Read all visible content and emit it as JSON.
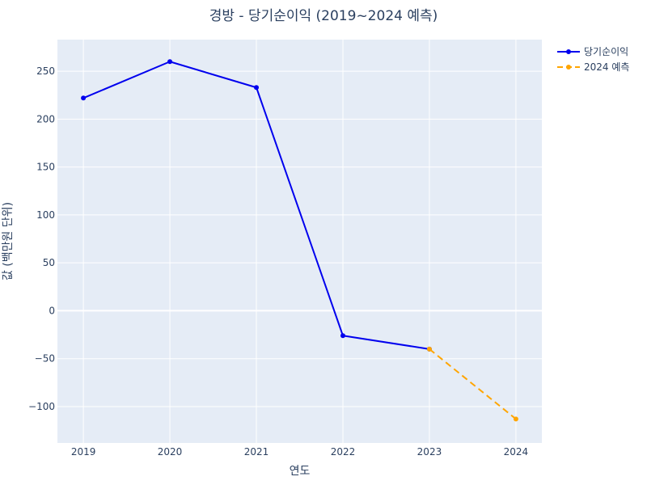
{
  "chart_data": {
    "type": "line",
    "title": "경방 - 당기순이익 (2019~2024 예측)",
    "xlabel": "연도",
    "ylabel": "값 (백만원 단위)",
    "x": [
      2019,
      2020,
      2021,
      2022,
      2023,
      2024
    ],
    "xlim": [
      2018.7,
      2024.3
    ],
    "ylim": [
      -138,
      283
    ],
    "xticks": [
      "2019",
      "2020",
      "2021",
      "2022",
      "2023",
      "2024"
    ],
    "yticks": [
      -100,
      -50,
      0,
      50,
      100,
      150,
      200,
      250
    ],
    "ytick_labels": [
      "−100",
      "−50",
      "0",
      "50",
      "100",
      "150",
      "200",
      "250"
    ],
    "series": [
      {
        "name": "당기순이익",
        "color": "#0000ee",
        "dash": "solid",
        "points": [
          [
            2019,
            222
          ],
          [
            2020,
            260
          ],
          [
            2021,
            233
          ],
          [
            2022,
            -26
          ],
          [
            2023,
            -40
          ]
        ]
      },
      {
        "name": "2024 예측",
        "color": "#ffa500",
        "dash": "dashed",
        "points": [
          [
            2023,
            -40
          ],
          [
            2024,
            -113
          ]
        ]
      }
    ],
    "grid": true,
    "legend_position": "top-right",
    "plot_background": "#e5ecf6"
  }
}
